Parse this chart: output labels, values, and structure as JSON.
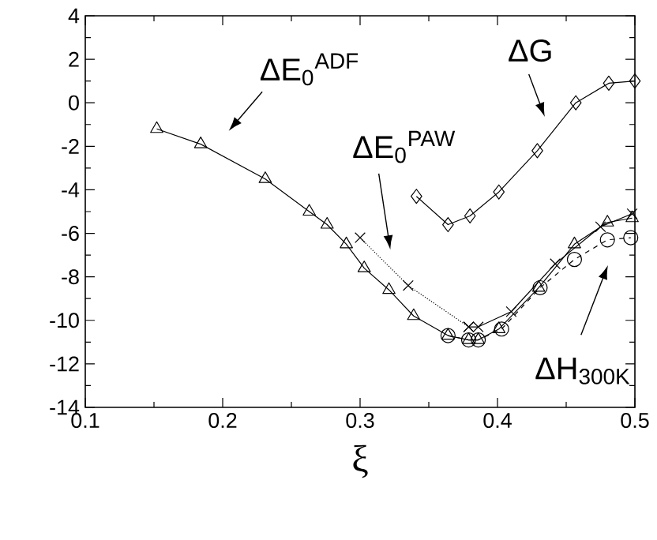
{
  "chart_data": {
    "type": "line",
    "xlabel": "ξ",
    "xlim": [
      0.1,
      0.5
    ],
    "xticks": [
      0.1,
      0.2,
      0.3,
      0.4,
      0.5
    ],
    "ylim": [
      -14,
      4
    ],
    "yticks": [
      -14,
      -12,
      -10,
      -8,
      -6,
      -4,
      -2,
      0,
      2,
      4
    ],
    "grid": false,
    "series": [
      {
        "color": "#000000",
        "marker": "circle",
        "line_style": "dashed",
        "x": [
          0.364,
          0.379,
          0.386,
          0.403,
          0.431,
          0.456,
          0.48,
          0.497
        ],
        "values": [
          -10.7,
          -10.9,
          -10.9,
          -10.4,
          -8.5,
          -7.2,
          -6.3,
          -6.2
        ]
      },
      {
        "color": "#000000",
        "marker": "triangle",
        "line_style": "solid",
        "x": [
          0.152,
          0.184,
          0.231,
          0.263,
          0.276,
          0.29,
          0.303,
          0.321,
          0.339,
          0.364,
          0.379,
          0.386,
          0.401,
          0.43,
          0.456,
          0.48,
          0.498
        ],
        "values": [
          -1.2,
          -1.9,
          -3.5,
          -5.0,
          -5.6,
          -6.5,
          -7.6,
          -8.6,
          -9.8,
          -10.7,
          -10.9,
          -10.9,
          -10.4,
          -8.5,
          -6.5,
          -5.5,
          -5.3
        ]
      },
      {
        "color": "#000000",
        "marker": "cross",
        "line_style": "dotted",
        "x": [
          0.3,
          0.335,
          0.379
        ],
        "values": [
          -6.2,
          -8.4,
          -10.3
        ]
      },
      {
        "color": "#000000",
        "marker": "cross",
        "line_style": "solid",
        "x": [
          0.379,
          0.386,
          0.41,
          0.442,
          0.475,
          0.498
        ],
        "values": [
          -10.3,
          -10.3,
          -9.6,
          -7.4,
          -5.7,
          -5.1
        ]
      },
      {
        "color": "#000000",
        "marker": "diamond",
        "line_style": "solid",
        "x": [
          0.341,
          0.364,
          0.38,
          0.401,
          0.429,
          0.457,
          0.481,
          0.5
        ],
        "values": [
          -4.3,
          -5.6,
          -5.2,
          -4.1,
          -2.2,
          0.0,
          0.9,
          1.0
        ]
      }
    ],
    "annotations": [
      "ΔE$_{0}$$^{ADF}$",
      "ΔE$_{0}$$^{PAW}$",
      "ΔG",
      "ΔH$_{300K}$"
    ]
  }
}
